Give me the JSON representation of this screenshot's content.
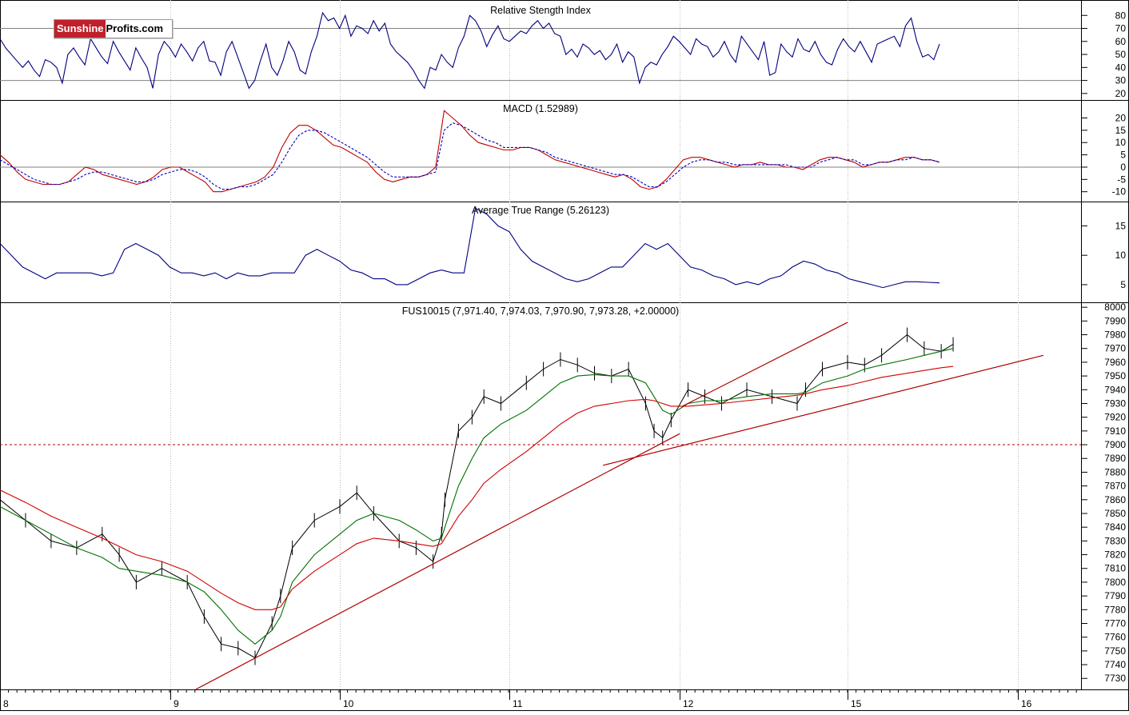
{
  "logo": {
    "part1": "Sunshine",
    "part2": "Profits.com"
  },
  "x_axis": {
    "day_labels": [
      "8",
      "9",
      "10",
      "11",
      "12",
      "15",
      "16"
    ]
  },
  "chart_data": [
    {
      "type": "line",
      "title": "Relative Stength Index",
      "ylim": [
        15,
        90
      ],
      "yticks": [
        80,
        70,
        60,
        50,
        40,
        30,
        20
      ],
      "reference_lines": [
        70,
        30
      ],
      "series": [
        {
          "name": "",
          "color": "#000080",
          "values": [
            62,
            55,
            50,
            45,
            40,
            45,
            38,
            33,
            46,
            44,
            40,
            28,
            50,
            55,
            48,
            42,
            62,
            55,
            48,
            43,
            60,
            52,
            45,
            38,
            55,
            47,
            40,
            24,
            50,
            60,
            55,
            48,
            58,
            52,
            45,
            55,
            60,
            45,
            44,
            34,
            52,
            60,
            48,
            36,
            24,
            30,
            45,
            58,
            40,
            34,
            45,
            60,
            52,
            38,
            35,
            52,
            64,
            82,
            76,
            78,
            70,
            80,
            64,
            72,
            70,
            66,
            76,
            68,
            74,
            58,
            52,
            48,
            44,
            38,
            30,
            24,
            40,
            38,
            50,
            44,
            40,
            55,
            64,
            80,
            76,
            68,
            56,
            65,
            72,
            62,
            60,
            64,
            68,
            66,
            72,
            76,
            70,
            74,
            66,
            64,
            50,
            54,
            48,
            58,
            55,
            50,
            53,
            46,
            50,
            58,
            44,
            52,
            48,
            28,
            40,
            44,
            42,
            50,
            56,
            64,
            60,
            55,
            50,
            62,
            58,
            56,
            48,
            52,
            60,
            50,
            44,
            64,
            58,
            52,
            46,
            60,
            34,
            36,
            58,
            52,
            48,
            62,
            54,
            52,
            60,
            50,
            44,
            42,
            54,
            62,
            56,
            52,
            60,
            52,
            44,
            58,
            60,
            62,
            64,
            56,
            72,
            78,
            60,
            48,
            50,
            46,
            58
          ]
        }
      ]
    },
    {
      "type": "line",
      "title": "MACD (1.52989)",
      "ylim": [
        -14,
        27
      ],
      "yticks": [
        20,
        15,
        10,
        5,
        0,
        -5,
        -10
      ],
      "reference_lines": [
        0
      ],
      "series": [
        {
          "name": "",
          "color": "#c00000",
          "values": [
            5,
            2,
            -2,
            -5,
            -6,
            -7,
            -7,
            -7,
            -6,
            -3,
            0,
            -1,
            -3,
            -4,
            -5,
            -6,
            -7,
            -6,
            -4,
            -1,
            0,
            0,
            -2,
            -4,
            -6,
            -10,
            -10,
            -9,
            -8,
            -7,
            -6,
            -4,
            0,
            8,
            14,
            17,
            17,
            15,
            12,
            9,
            8,
            6,
            4,
            2,
            -2,
            -5,
            -6,
            -5,
            -4,
            -4,
            -3,
            0,
            23,
            20,
            17,
            13,
            10,
            9,
            8,
            7,
            7,
            8,
            8,
            7,
            5,
            3,
            2,
            1,
            0,
            -1,
            -2,
            -3,
            -4,
            -3,
            -5,
            -8,
            -9,
            -8,
            -5,
            -1,
            3,
            4,
            4,
            3,
            2,
            1,
            0,
            1,
            1,
            2,
            1,
            1,
            0,
            0,
            -1,
            1,
            3,
            4,
            4,
            3,
            2,
            0,
            1,
            2,
            2,
            3,
            4,
            4,
            3,
            3,
            2
          ]
        },
        {
          "name": "",
          "color": "#0000c0",
          "values": [
            3,
            1,
            -1,
            -3,
            -5,
            -6,
            -7,
            -7,
            -6,
            -5,
            -3,
            -2,
            -2,
            -3,
            -4,
            -5,
            -6,
            -6,
            -5,
            -3,
            -2,
            -1,
            -1,
            -2,
            -4,
            -7,
            -9,
            -9,
            -8,
            -8,
            -7,
            -5,
            -3,
            2,
            8,
            13,
            15,
            15,
            14,
            12,
            10,
            8,
            6,
            4,
            1,
            -2,
            -4,
            -4,
            -4,
            -4,
            -3,
            -2,
            15,
            18,
            17,
            15,
            13,
            11,
            10,
            8,
            8,
            8,
            8,
            7,
            6,
            4,
            3,
            2,
            1,
            0,
            -1,
            -2,
            -3,
            -3,
            -4,
            -6,
            -8,
            -8,
            -6,
            -3,
            0,
            2,
            3,
            3,
            2,
            2,
            1,
            1,
            1,
            1,
            1,
            1,
            1,
            0,
            0,
            0,
            2,
            3,
            4,
            3,
            3,
            1,
            1,
            2,
            2,
            3,
            3,
            4,
            3,
            3,
            2
          ]
        }
      ]
    },
    {
      "type": "line",
      "title": "Average True Range (5.26123)",
      "ylim": [
        2,
        19
      ],
      "yticks": [
        15,
        10,
        5
      ],
      "reference_lines": [],
      "series": [
        {
          "name": "",
          "color": "#000080",
          "values": [
            12,
            10,
            8,
            7,
            6,
            7,
            7,
            7,
            7,
            6.5,
            7,
            11,
            12,
            11,
            10,
            8,
            7,
            7,
            6.5,
            7,
            6,
            7,
            6.5,
            6.5,
            7,
            7,
            7,
            10,
            11,
            10,
            9,
            7.5,
            7,
            6,
            6,
            5,
            5,
            6,
            7,
            7.5,
            7,
            7,
            18,
            17,
            15,
            14,
            11,
            9,
            8,
            7,
            6,
            5.5,
            6,
            7,
            8,
            8,
            10,
            12,
            11,
            12,
            10,
            8,
            7.5,
            6.5,
            6,
            5,
            5.5,
            5,
            6,
            6.5,
            8,
            9,
            8.5,
            7.5,
            7,
            6,
            5.5,
            5,
            4.5,
            5,
            5.5,
            5.5,
            5.4,
            5.3
          ]
        }
      ]
    },
    {
      "type": "line",
      "title": "FUS10015 (7,971.40, 7,974.03, 7,970.90, 7,973.28, +2.00000)",
      "ylim": [
        7722,
        8003
      ],
      "yticks": [
        8000,
        7990,
        7980,
        7970,
        7960,
        7950,
        7940,
        7930,
        7920,
        7910,
        7900,
        7890,
        7880,
        7870,
        7860,
        7850,
        7840,
        7830,
        7820,
        7810,
        7800,
        7790,
        7780,
        7770,
        7760,
        7750,
        7740,
        7730
      ],
      "reference_lines": [
        7900
      ],
      "x": [
        8.0,
        8.15,
        8.3,
        8.45,
        8.6,
        8.7,
        8.8,
        8.95,
        9.1,
        9.2,
        9.3,
        9.4,
        9.5,
        9.6,
        9.65,
        9.72,
        9.85,
        10.0,
        10.1,
        10.2,
        10.35,
        10.45,
        10.55,
        10.6,
        10.62,
        10.7,
        10.78,
        10.85,
        10.95,
        11.1,
        11.2,
        11.3,
        11.4,
        11.5,
        11.6,
        11.7,
        11.8,
        11.85,
        11.9,
        11.95,
        12.05,
        12.15,
        12.25,
        12.4,
        12.55,
        12.7,
        12.75,
        12.85,
        13.0,
        13.1,
        13.2,
        13.35,
        13.45,
        13.55,
        13.62
      ],
      "series": [
        {
          "name": "",
          "color": "#000000",
          "values": [
            7860,
            7845,
            7830,
            7825,
            7835,
            7820,
            7800,
            7810,
            7800,
            7775,
            7755,
            7752,
            7745,
            7770,
            7790,
            7825,
            7845,
            7855,
            7865,
            7850,
            7830,
            7825,
            7815,
            7835,
            7860,
            7910,
            7920,
            7935,
            7930,
            7945,
            7955,
            7962,
            7958,
            7952,
            7950,
            7955,
            7930,
            7910,
            7905,
            7918,
            7940,
            7935,
            7930,
            7940,
            7935,
            7930,
            7940,
            7955,
            7960,
            7958,
            7965,
            7980,
            7970,
            7968,
            7973
          ]
        },
        {
          "name": "",
          "color": "#007000",
          "values": [
            7855,
            7845,
            7835,
            7825,
            7818,
            7810,
            7808,
            7805,
            7800,
            7793,
            7780,
            7765,
            7755,
            7765,
            7775,
            7800,
            7820,
            7835,
            7845,
            7850,
            7845,
            7838,
            7830,
            7832,
            7840,
            7870,
            7890,
            7905,
            7915,
            7925,
            7935,
            7945,
            7950,
            7951,
            7950,
            7950,
            7945,
            7935,
            7925,
            7922,
            7930,
            7932,
            7932,
            7935,
            7937,
            7937,
            7938,
            7945,
            7950,
            7955,
            7958,
            7962,
            7965,
            7968,
            7970
          ]
        },
        {
          "name": "",
          "color": "#d00000",
          "values": [
            7867,
            7858,
            7848,
            7840,
            7832,
            7826,
            7820,
            7815,
            7808,
            7800,
            7792,
            7785,
            7780,
            7780,
            7782,
            7795,
            7808,
            7820,
            7828,
            7832,
            7830,
            7828,
            7826,
            7828,
            7832,
            7848,
            7860,
            7872,
            7882,
            7895,
            7905,
            7915,
            7923,
            7928,
            7930,
            7932,
            7933,
            7932,
            7930,
            7928,
            7928,
            7929,
            7930,
            7932,
            7934,
            7936,
            7937,
            7940,
            7943,
            7946,
            7949,
            7952,
            7954,
            7956,
            7957
          ]
        }
      ],
      "trend_lines": [
        {
          "color": "#b00000",
          "x": [
            9.15,
            12.0
          ],
          "y": [
            7722,
            7908
          ]
        },
        {
          "color": "#b00000",
          "x": [
            11.55,
            16.15
          ],
          "y": [
            7885,
            7965
          ]
        },
        {
          "color": "#b00000",
          "x": [
            12.05,
            15.0
          ],
          "y": [
            7928,
            7989
          ]
        }
      ]
    }
  ]
}
